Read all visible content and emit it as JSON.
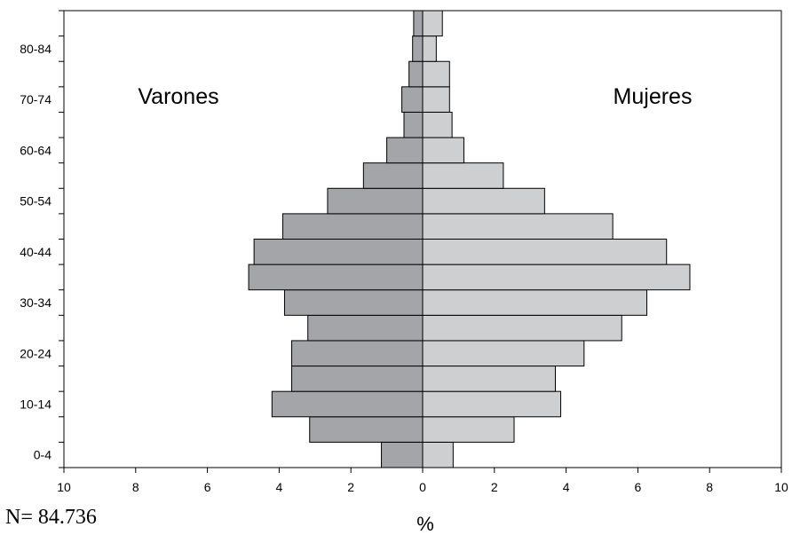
{
  "chart_data": {
    "type": "bar",
    "orientation": "horizontal",
    "layout": "population-pyramid",
    "categories": [
      "0-4",
      "5-9",
      "10-14",
      "15-19",
      "20-24",
      "25-29",
      "30-34",
      "35-39",
      "40-44",
      "45-49",
      "50-54",
      "55-59",
      "60-64",
      "65-69",
      "70-74",
      "75-79",
      "80-84",
      "85+"
    ],
    "y_tick_labels": [
      "0-4",
      "10-14",
      "20-24",
      "30-34",
      "40-44",
      "50-54",
      "60-64",
      "70-74",
      "80-84"
    ],
    "series": [
      {
        "name": "Varones",
        "side": "left",
        "color": "#a3a5a8",
        "values": [
          1.15,
          3.15,
          4.2,
          3.65,
          3.65,
          3.2,
          3.85,
          4.85,
          4.7,
          3.9,
          2.65,
          1.65,
          1.0,
          0.52,
          0.58,
          0.38,
          0.28,
          0.25
        ]
      },
      {
        "name": "Mujeres",
        "side": "right",
        "color": "#cdcfd1",
        "values": [
          0.85,
          2.55,
          3.85,
          3.7,
          4.5,
          5.55,
          6.25,
          7.45,
          6.8,
          5.3,
          3.4,
          2.25,
          1.15,
          0.82,
          0.75,
          0.75,
          0.38,
          0.55
        ]
      }
    ],
    "x_ticks": [
      "10",
      "8",
      "6",
      "4",
      "2",
      "0",
      "2",
      "4",
      "6",
      "8",
      "10"
    ],
    "xlim": [
      -10,
      10
    ],
    "xlabel": "%",
    "note": "N= 84.736",
    "grid": false,
    "legend": "none"
  }
}
